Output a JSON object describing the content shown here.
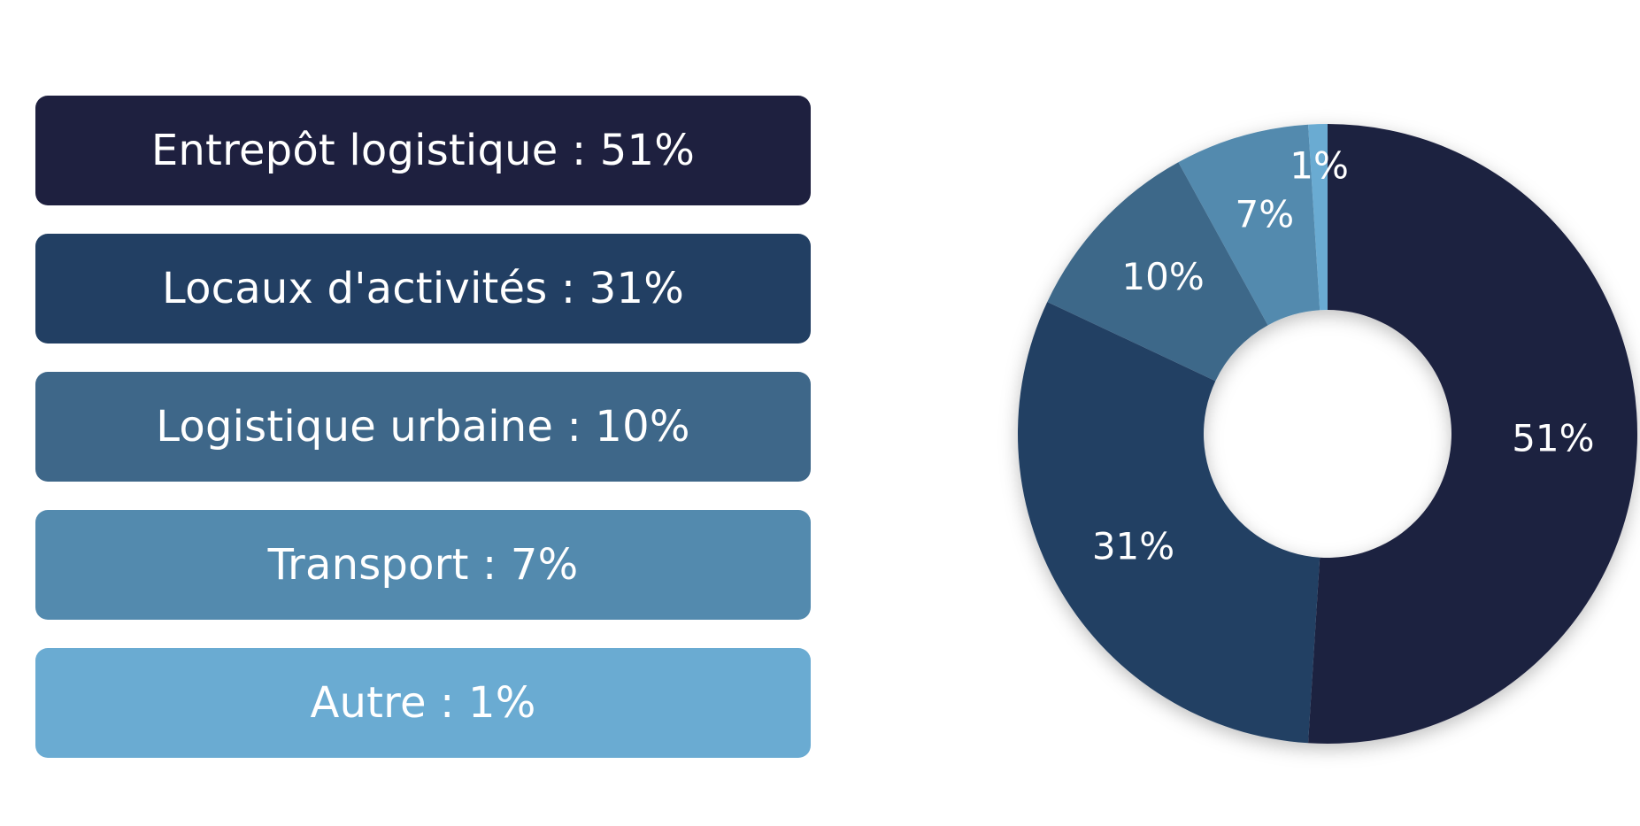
{
  "chart_data": {
    "type": "pie",
    "categories": [
      "Entrepôt logistique",
      "Locaux d'activités",
      "Logistique urbaine",
      "Transport",
      "Autre"
    ],
    "values": [
      51,
      31,
      10,
      7,
      1
    ],
    "colors": [
      "#1e203f",
      "#223f63",
      "#3e6789",
      "#538aae",
      "#6aabd2"
    ],
    "slice_labels": [
      "51%",
      "31%",
      "10%",
      "7%",
      "1%"
    ],
    "legend_labels": [
      "Entrepôt logistique : 51%",
      "Locaux d'activités : 31%",
      "Logistique urbaine : 10%",
      "Transport : 7%",
      "Autre : 1%"
    ],
    "donut": true,
    "legend_position": "left"
  }
}
